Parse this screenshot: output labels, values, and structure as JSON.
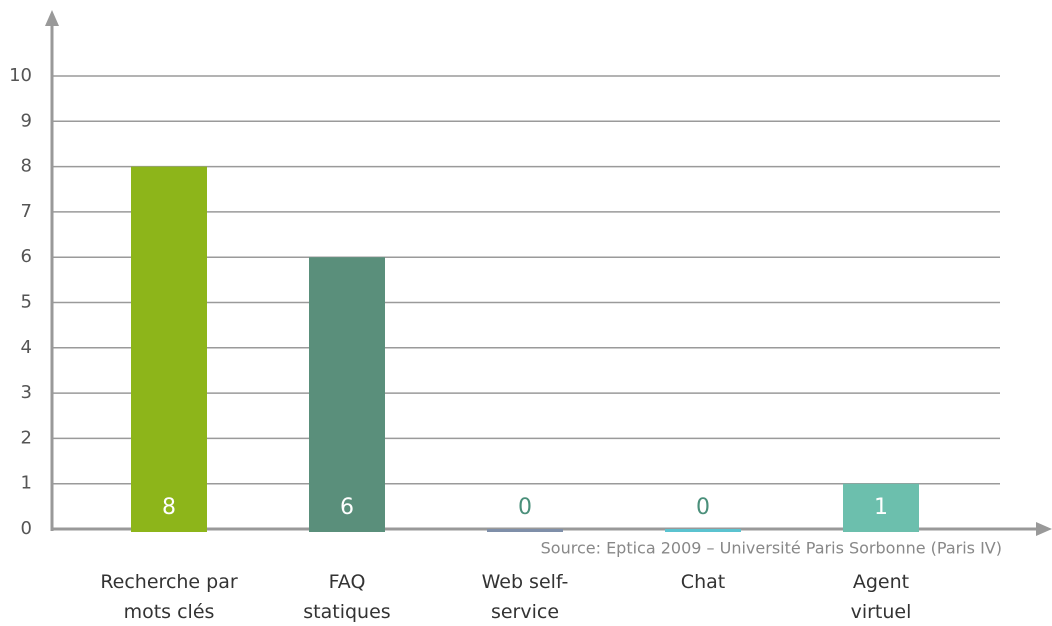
{
  "chart_data": {
    "type": "bar",
    "categories": [
      "Recherche par\nmots clés",
      "FAQ\nstatiques",
      "Web self-\nservice",
      "Chat",
      "Agent\nvirtuel"
    ],
    "values": [
      8,
      6,
      0,
      0,
      1
    ],
    "colors": [
      "#8db51a",
      "#5a8f7b",
      "#7f8fa9",
      "#5bc3d0",
      "#6cbfad"
    ],
    "ylim": [
      0,
      10
    ],
    "yticks": [
      0,
      1,
      2,
      3,
      4,
      5,
      6,
      7,
      8,
      9,
      10
    ],
    "grid": true,
    "source": "Source: Eptica 2009 – Université Paris Sorbonne (Paris IV)"
  }
}
